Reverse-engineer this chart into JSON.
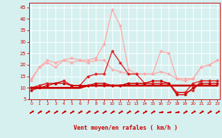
{
  "x": [
    0,
    1,
    2,
    3,
    4,
    5,
    6,
    7,
    8,
    9,
    10,
    11,
    12,
    13,
    14,
    15,
    16,
    17,
    18,
    19,
    20,
    21,
    22,
    23
  ],
  "series": [
    {
      "color": "#ffaaaa",
      "linewidth": 1.0,
      "markersize": 2.5,
      "marker": "o",
      "values": [
        13,
        19,
        22,
        21,
        22,
        21,
        22,
        22,
        23,
        29,
        44,
        37,
        18,
        16,
        16,
        16,
        26,
        25,
        14,
        14,
        14,
        19,
        20,
        22
      ]
    },
    {
      "color": "#ffaaaa",
      "linewidth": 1.0,
      "markersize": 2.5,
      "marker": "o",
      "values": [
        14,
        19,
        21,
        19,
        22,
        23,
        22,
        21,
        22,
        22,
        18,
        17,
        16,
        16,
        16,
        16,
        17,
        16,
        14,
        13,
        14,
        19,
        20,
        22
      ]
    },
    {
      "color": "#dd2222",
      "linewidth": 1.0,
      "markersize": 2.5,
      "marker": "o",
      "values": [
        10,
        11,
        12,
        12,
        13,
        11,
        11,
        15,
        16,
        16,
        26,
        21,
        16,
        16,
        12,
        12,
        12,
        12,
        8,
        8,
        12,
        13,
        13,
        13
      ]
    },
    {
      "color": "#dd2222",
      "linewidth": 1.0,
      "markersize": 2.5,
      "marker": "o",
      "values": [
        10,
        11,
        12,
        12,
        13,
        11,
        11,
        11,
        11,
        11,
        11,
        11,
        12,
        12,
        12,
        12,
        12,
        12,
        8,
        8,
        9,
        13,
        13,
        13
      ]
    },
    {
      "color": "#cc0000",
      "linewidth": 2.0,
      "markersize": 0,
      "marker": null,
      "values": [
        10,
        10,
        10,
        10,
        10,
        10,
        10,
        11,
        11,
        11,
        11,
        11,
        11,
        11,
        11,
        11,
        11,
        11,
        11,
        11,
        11,
        11,
        11,
        11
      ]
    },
    {
      "color": "#cc0000",
      "linewidth": 1.0,
      "markersize": 2.5,
      "marker": "o",
      "values": [
        9,
        10,
        11,
        12,
        12,
        11,
        11,
        11,
        12,
        12,
        11,
        11,
        12,
        12,
        12,
        13,
        13,
        12,
        7,
        7,
        10,
        12,
        12,
        12
      ]
    }
  ],
  "ylim": [
    5,
    47
  ],
  "yticks": [
    5,
    10,
    15,
    20,
    25,
    30,
    35,
    40,
    45
  ],
  "xlim": [
    -0.3,
    23.3
  ],
  "xlabel": "Vent moyen/en rafales ( km/h )",
  "background_color": "#d6f0f0",
  "grid_color": "#b0d8d8",
  "tick_color": "#cc0000",
  "label_color": "#cc0000",
  "arrow_color": "#cc0000"
}
